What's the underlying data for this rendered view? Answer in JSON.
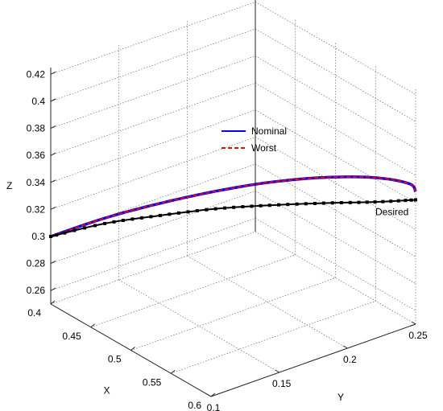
{
  "chart_data": {
    "type": "line",
    "projection": "3d",
    "xlabel": "X",
    "ylabel": "Y",
    "zlabel": "Z",
    "xlim": [
      0.4,
      0.6
    ],
    "ylim": [
      0.1,
      0.25
    ],
    "zlim": [
      0.25,
      0.42
    ],
    "x_ticks": [
      "0.4",
      "0.45",
      "0.5",
      "0.55",
      "0.6"
    ],
    "y_ticks": [
      "0.1",
      "0.15",
      "0.2",
      "0.25"
    ],
    "z_ticks": [
      "0.26",
      "0.28",
      "0.3",
      "0.32",
      "0.34",
      "0.36",
      "0.38",
      "0.4",
      "0.42"
    ],
    "grid": true,
    "legend": {
      "placement": "center",
      "entries": [
        {
          "name": "Nominal",
          "style": "solid",
          "color": "#0000ff"
        },
        {
          "name": "Worst",
          "style": "dashed",
          "color": "#ff0000"
        }
      ]
    },
    "annotations": [
      {
        "text": "Desired",
        "anchor_series": "Desired"
      }
    ],
    "series": [
      {
        "name": "Nominal",
        "color": "#0000ff",
        "style": "solid",
        "points": [
          [
            0.4,
            0.1,
            0.3
          ],
          [
            0.43,
            0.122,
            0.316
          ],
          [
            0.46,
            0.145,
            0.329
          ],
          [
            0.49,
            0.168,
            0.34
          ],
          [
            0.52,
            0.19,
            0.349
          ],
          [
            0.55,
            0.212,
            0.355
          ],
          [
            0.58,
            0.232,
            0.358
          ],
          [
            0.597,
            0.247,
            0.354
          ],
          [
            0.6,
            0.25,
            0.348
          ]
        ]
      },
      {
        "name": "Worst",
        "color": "#ff0000",
        "style": "dashed",
        "points": [
          [
            0.4,
            0.1,
            0.3
          ],
          [
            0.43,
            0.122,
            0.316
          ],
          [
            0.46,
            0.145,
            0.329
          ],
          [
            0.49,
            0.168,
            0.34
          ],
          [
            0.52,
            0.19,
            0.349
          ],
          [
            0.55,
            0.212,
            0.355
          ],
          [
            0.58,
            0.232,
            0.358
          ],
          [
            0.597,
            0.247,
            0.354
          ],
          [
            0.6,
            0.25,
            0.348
          ]
        ]
      },
      {
        "name": "Desired",
        "color": "#000000",
        "style": "markers",
        "points": [
          [
            0.4,
            0.1,
            0.3
          ],
          [
            0.43,
            0.122,
            0.312
          ],
          [
            0.46,
            0.145,
            0.32
          ],
          [
            0.49,
            0.168,
            0.327
          ],
          [
            0.52,
            0.19,
            0.332
          ],
          [
            0.55,
            0.212,
            0.336
          ],
          [
            0.58,
            0.232,
            0.34
          ],
          [
            0.6,
            0.25,
            0.342
          ]
        ]
      }
    ]
  }
}
